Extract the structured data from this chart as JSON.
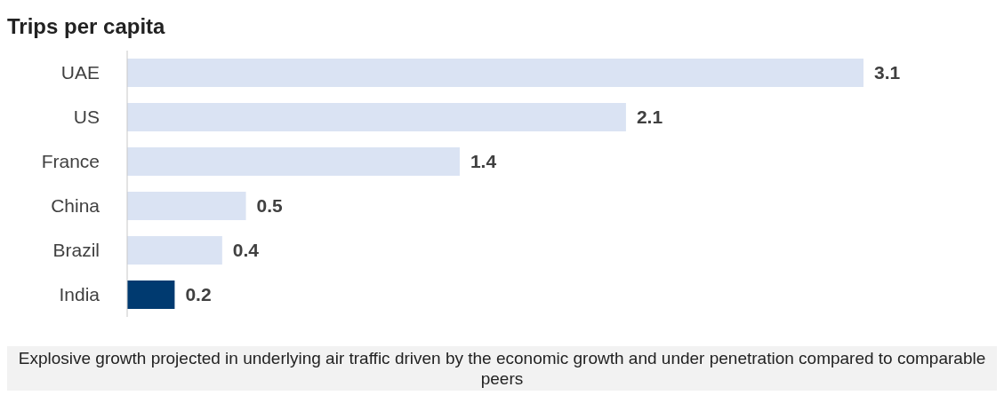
{
  "chart_data": {
    "type": "bar",
    "orientation": "horizontal",
    "title": "Trips per capita",
    "categories": [
      "UAE",
      "US",
      "France",
      "China",
      "Brazil",
      "India"
    ],
    "values": [
      3.1,
      2.1,
      1.4,
      0.5,
      0.4,
      0.2
    ],
    "colors": [
      "#dae3f3",
      "#dae3f3",
      "#dae3f3",
      "#dae3f3",
      "#dae3f3",
      "#003a70"
    ],
    "data_labels": true,
    "annotations": [
      "Explosive growth projected in underlying air traffic driven by the economic growth and under penetration compared to comparable peers"
    ]
  }
}
